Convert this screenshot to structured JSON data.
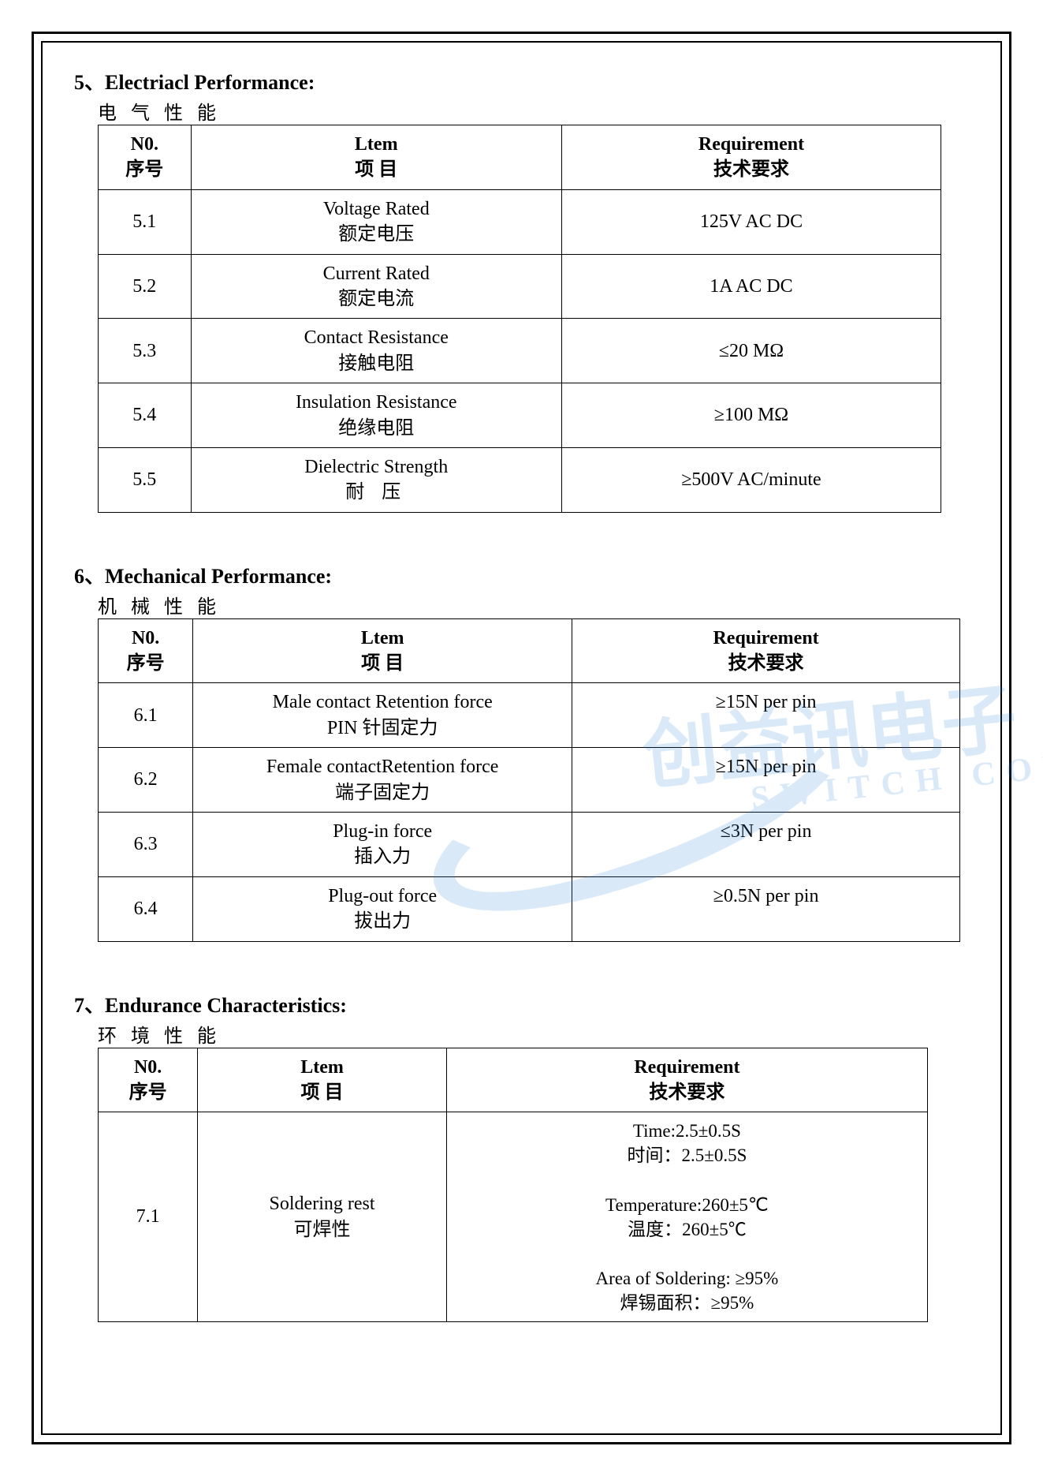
{
  "colors": {
    "text": "#000000",
    "border": "#000000",
    "background": "#ffffff",
    "watermark": "#2a7fd6"
  },
  "typography": {
    "base_font": "Times New Roman / SimSun",
    "title_size_pt": 26,
    "body_size_pt": 24
  },
  "watermark": {
    "line1": "创益讯电子",
    "line2": "SWITCH CONNECTOR"
  },
  "section5": {
    "number": "5、",
    "title_en": "Electriacl   Performance:",
    "title_cn": "电 气 性 能",
    "headers": {
      "no_en": "N0.",
      "no_cn": "序号",
      "item_en": "Ltem",
      "item_cn": "项 目",
      "req_en": "Requirement",
      "req_cn": "技术要求"
    },
    "rows": [
      {
        "no": "5.1",
        "item_en": "Voltage Rated",
        "item_cn": "额定电压",
        "req": "125V   AC   DC"
      },
      {
        "no": "5.2",
        "item_en": "Current Rated",
        "item_cn": "额定电流",
        "req": "1A     AC   DC"
      },
      {
        "no": "5.3",
        "item_en": "Contact Resistance",
        "item_cn": "接触电阻",
        "req": "≤20   MΩ"
      },
      {
        "no": "5.4",
        "item_en": "Insulation Resistance",
        "item_cn": "绝缘电阻",
        "req": "≥100   MΩ"
      },
      {
        "no": "5.5",
        "item_en": "Dielectric Strength",
        "item_cn": "耐 压",
        "req": "≥500V   AC/minute"
      }
    ]
  },
  "section6": {
    "number": "6、",
    "title_en": "Mechanical   Performance:",
    "title_cn": "机 械 性 能",
    "headers": {
      "no_en": "N0.",
      "no_cn": "序号",
      "item_en": "Ltem",
      "item_cn": "项 目",
      "req_en": "Requirement",
      "req_cn": "技术要求"
    },
    "rows": [
      {
        "no": "6.1",
        "item_en": "Male contact Retention force",
        "item_cn": "PIN 针固定力",
        "req": "≥15N    per pin"
      },
      {
        "no": "6.2",
        "item_en": "Female contactRetention force",
        "item_cn": "端子固定力",
        "req": "≥15N    per pin"
      },
      {
        "no": "6.3",
        "item_en": "Plug-in force",
        "item_cn": "插入力",
        "req": "≤3N    per pin"
      },
      {
        "no": "6.4",
        "item_en": "Plug-out force",
        "item_cn": "拔出力",
        "req": "≥0.5N    per pin"
      }
    ]
  },
  "section7": {
    "number": "7、",
    "title_en": "Endurance Characteristics:",
    "title_cn": "环 境 性 能",
    "headers": {
      "no_en": "N0.",
      "no_cn": "序号",
      "item_en": "Ltem",
      "item_cn": "项 目",
      "req_en": "Requirement",
      "req_cn": "技术要求"
    },
    "rows": [
      {
        "no": "7.1",
        "item_en": "Soldering rest",
        "item_cn": "可焊性",
        "req": "Time:2.5±0.5S\n时间：2.5±0.5S\n\nTemperature:260±5℃\n温度：260±5℃\n\nArea of Soldering: ≥95%\n焊锡面积：≥95%"
      }
    ]
  }
}
